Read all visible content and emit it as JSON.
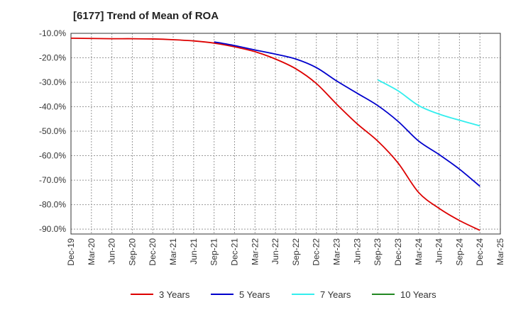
{
  "chart_data": {
    "type": "line",
    "title": "[6177]  Trend of Mean of ROA",
    "xlabel": "",
    "ylabel": "",
    "ylim": [
      -92,
      -10
    ],
    "y_ticks": [
      -10,
      -20,
      -30,
      -40,
      -50,
      -60,
      -70,
      -80,
      -90
    ],
    "y_tick_labels": [
      "-10.0%",
      "-20.0%",
      "-30.0%",
      "-40.0%",
      "-50.0%",
      "-60.0%",
      "-70.0%",
      "-80.0%",
      "-90.0%"
    ],
    "x_tick_labels": [
      "Dec-19",
      "Mar-20",
      "Jun-20",
      "Sep-20",
      "Dec-20",
      "Mar-21",
      "Jun-21",
      "Sep-21",
      "Dec-21",
      "Mar-22",
      "Jun-22",
      "Sep-22",
      "Dec-22",
      "Mar-23",
      "Jun-23",
      "Sep-23",
      "Dec-23",
      "Mar-24",
      "Jun-24",
      "Sep-24",
      "Dec-24",
      "Mar-25"
    ],
    "grid": true,
    "legend_position": "bottom",
    "series": [
      {
        "name": "3 Years",
        "color": "#dd0000",
        "points": [
          [
            "Dec-19",
            -12.0
          ],
          [
            "Mar-20",
            -12.1
          ],
          [
            "Jun-20",
            -12.2
          ],
          [
            "Sep-20",
            -12.2
          ],
          [
            "Dec-20",
            -12.3
          ],
          [
            "Mar-21",
            -12.6
          ],
          [
            "Jun-21",
            -13.1
          ],
          [
            "Sep-21",
            -14.0
          ],
          [
            "Dec-21",
            -15.5
          ],
          [
            "Mar-22",
            -17.5
          ],
          [
            "Jun-22",
            -20.5
          ],
          [
            "Sep-22",
            -24.5
          ],
          [
            "Dec-22",
            -30.5
          ],
          [
            "Mar-23",
            -39.0
          ],
          [
            "Jun-23",
            -47.0
          ],
          [
            "Sep-23",
            -54.0
          ],
          [
            "Dec-23",
            -63.0
          ],
          [
            "Mar-24",
            -75.0
          ],
          [
            "Jun-24",
            -81.5
          ],
          [
            "Sep-24",
            -86.5
          ],
          [
            "Dec-24",
            -90.5
          ]
        ]
      },
      {
        "name": "5 Years",
        "color": "#0000cc",
        "points": [
          [
            "Sep-21",
            -13.5
          ],
          [
            "Dec-21",
            -15.0
          ],
          [
            "Mar-22",
            -16.8
          ],
          [
            "Jun-22",
            -18.5
          ],
          [
            "Sep-22",
            -20.5
          ],
          [
            "Dec-22",
            -24.0
          ],
          [
            "Mar-23",
            -29.5
          ],
          [
            "Jun-23",
            -34.5
          ],
          [
            "Sep-23",
            -39.5
          ],
          [
            "Dec-23",
            -46.0
          ],
          [
            "Mar-24",
            -54.0
          ],
          [
            "Jun-24",
            -59.5
          ],
          [
            "Sep-24",
            -65.5
          ],
          [
            "Dec-24",
            -72.5
          ]
        ]
      },
      {
        "name": "7 Years",
        "color": "#33eeee",
        "points": [
          [
            "Sep-23",
            -29.0
          ],
          [
            "Dec-23",
            -33.5
          ],
          [
            "Mar-24",
            -39.5
          ],
          [
            "Jun-24",
            -43.0
          ],
          [
            "Sep-24",
            -45.5
          ],
          [
            "Dec-24",
            -47.8
          ]
        ]
      },
      {
        "name": "10 Years",
        "color": "#228822",
        "points": []
      }
    ]
  }
}
